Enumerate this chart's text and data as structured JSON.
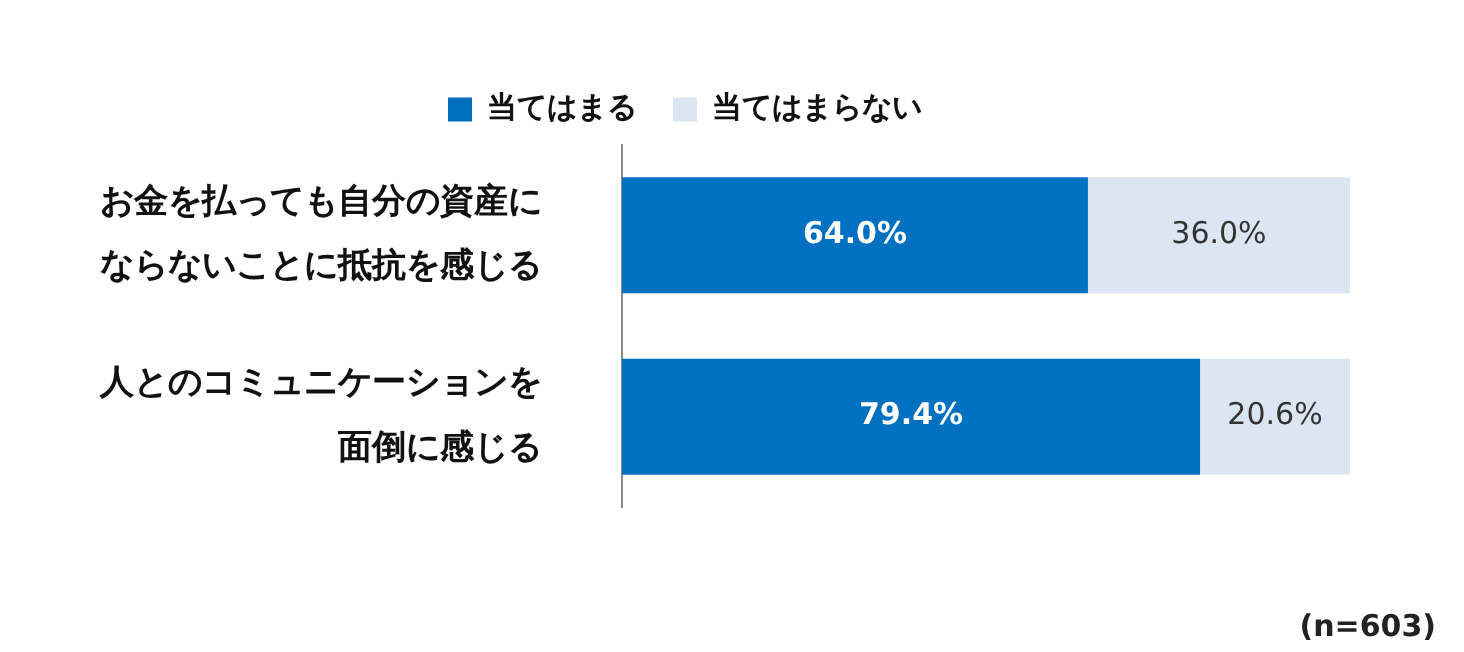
{
  "chart_data": {
    "type": "bar",
    "orientation": "horizontal",
    "stacked": true,
    "categories": [
      "お金を払っても自分の資産にならないことに抵抗を感じる",
      "人とのコミュニケーションを面倒に感じる"
    ],
    "series": [
      {
        "name": "当てはまる",
        "color": "#0070c0",
        "values": [
          64.0,
          79.4
        ],
        "value_labels": [
          "64.0%",
          "79.4%"
        ]
      },
      {
        "name": "当てはまらない",
        "color": "#dce6f2",
        "values": [
          36.0,
          20.6
        ],
        "value_labels": [
          "36.0%",
          "20.6%"
        ]
      }
    ],
    "tick_labels": "y",
    "legend": "top",
    "annotations": [
      "(n=603)"
    ]
  }
}
